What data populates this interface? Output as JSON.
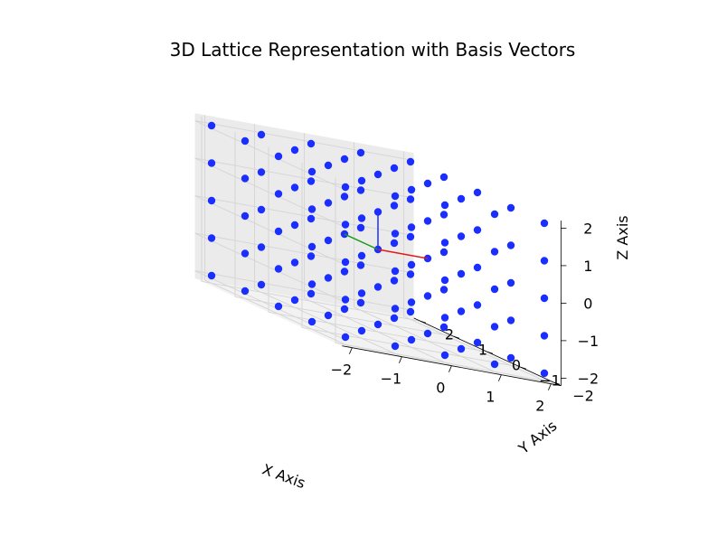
{
  "chart_data": {
    "type": "scatter",
    "title": "3D Lattice Representation with Basis Vectors",
    "xlabel": "X Axis",
    "ylabel": "Y Axis",
    "zlabel": "Z Axis",
    "xlim": [
      -2,
      2
    ],
    "ylim": [
      -2,
      2
    ],
    "zlim": [
      -2,
      2
    ],
    "x_ticks": [
      "−2",
      "−1",
      "0",
      "1",
      "2"
    ],
    "y_ticks": [
      "−2",
      "−1",
      "0",
      "1",
      "2"
    ],
    "z_ticks": [
      "−2",
      "−1",
      "0",
      "1",
      "2"
    ],
    "grid": true,
    "lattice": {
      "x_values": [
        -2,
        -1,
        0,
        1,
        2
      ],
      "y_values": [
        -2,
        -1,
        0,
        1,
        2
      ],
      "z_values": [
        -2,
        -1,
        0,
        1,
        2
      ],
      "point_color": "#1a2eff"
    },
    "basis_vectors": [
      {
        "color": "#e31a1c",
        "origin": [
          0,
          0,
          0
        ],
        "vector": [
          1,
          0,
          0
        ]
      },
      {
        "color": "#1a9a1a",
        "origin": [
          0,
          0,
          0
        ],
        "vector": [
          0,
          1,
          0
        ]
      },
      {
        "color": "#1a2eff",
        "origin": [
          0,
          0,
          0
        ],
        "vector": [
          0,
          0,
          1
        ]
      }
    ]
  }
}
